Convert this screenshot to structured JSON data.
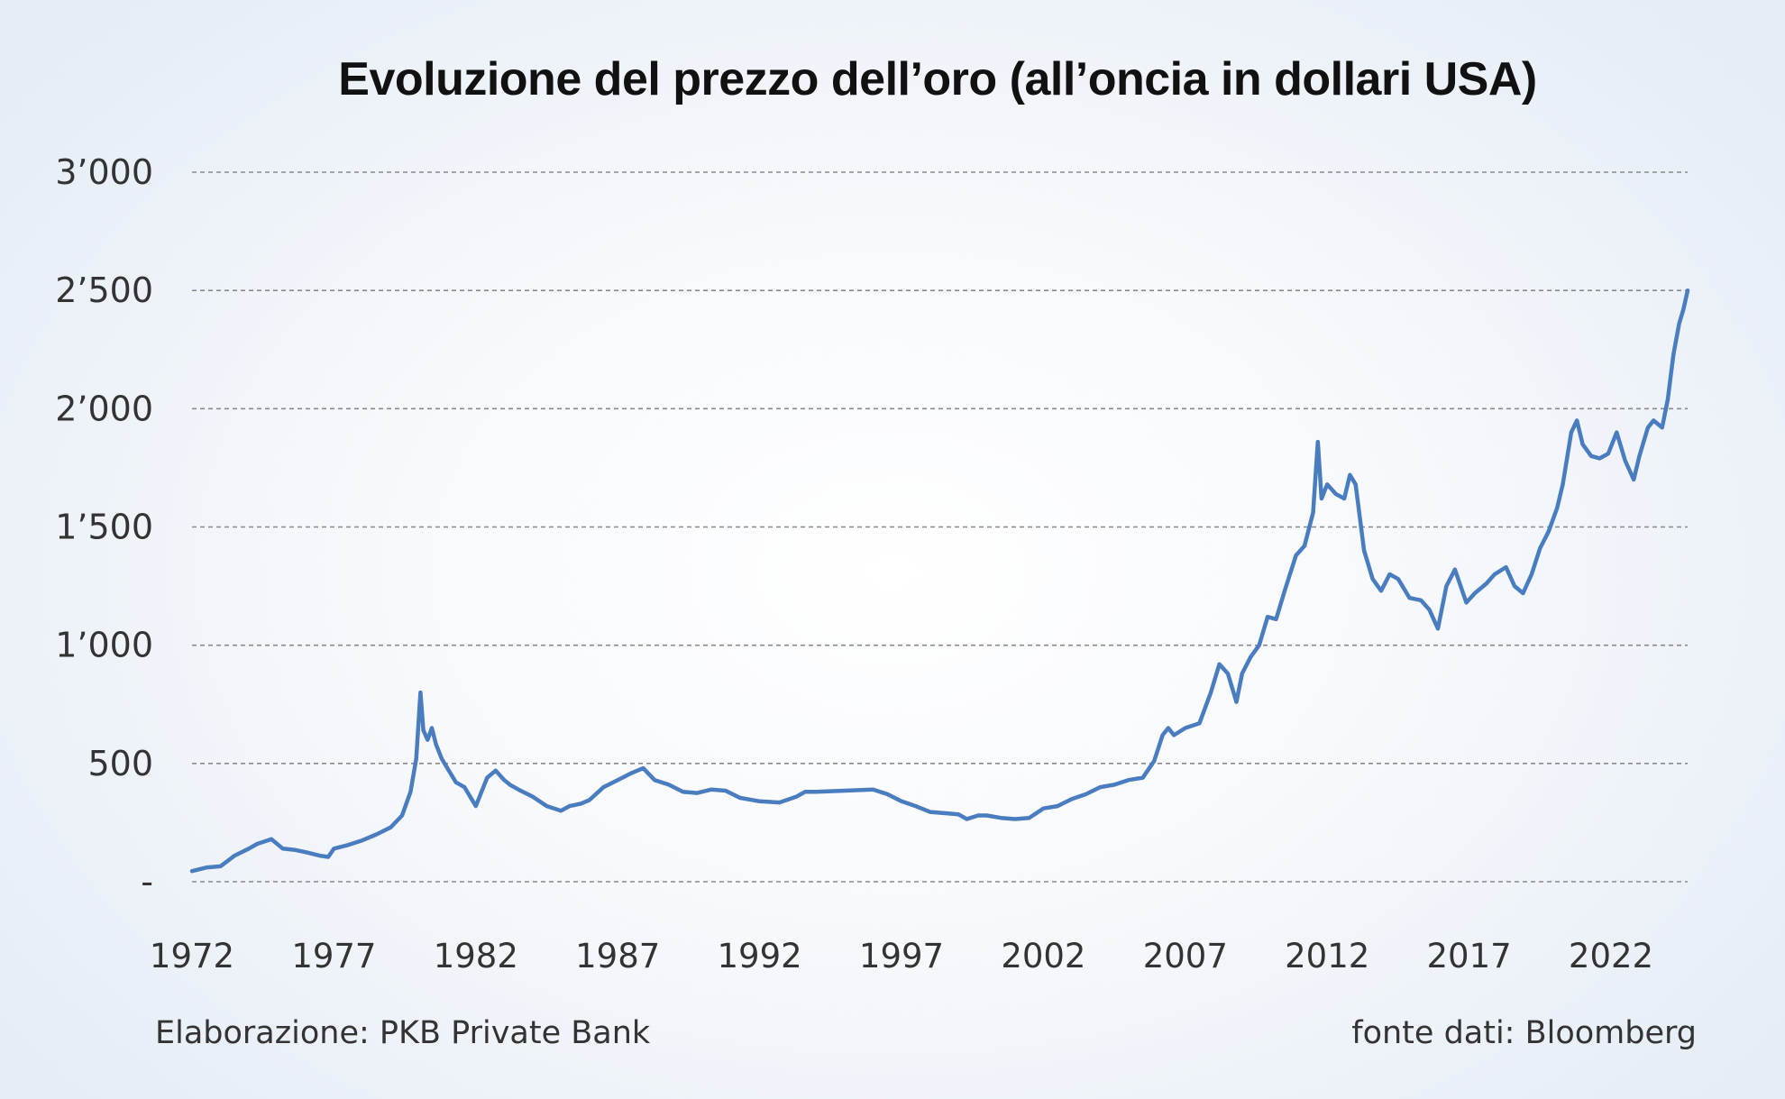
{
  "footer": {
    "left": "Elaborazione: PKB Private Bank",
    "right": "fonte dati: Bloomberg"
  },
  "chart_data": {
    "type": "line",
    "title": "Evoluzione del prezzo dell’oro (all’oncia in dollari USA)",
    "xlabel": "",
    "ylabel": "",
    "xlim": [
      1972,
      2024.7
    ],
    "ylim": [
      0,
      3000
    ],
    "x_ticks": [
      "1972",
      "1977",
      "1982",
      "1987",
      "1992",
      "1997",
      "2002",
      "2007",
      "2012",
      "2017",
      "2022"
    ],
    "x_tick_values": [
      1972,
      1977,
      1982,
      1987,
      1992,
      1997,
      2002,
      2007,
      2012,
      2017,
      2022
    ],
    "y_ticks": [
      "-",
      "500",
      "1’000",
      "1’500",
      "2’000",
      "2’500",
      "3’000"
    ],
    "y_tick_values": [
      0,
      500,
      1000,
      1500,
      2000,
      2500,
      3000
    ],
    "grid": "horizontal dashed",
    "line_color": "#4a7cc0",
    "grid_color": "#8a8a8a",
    "series": [
      {
        "name": "",
        "x": [
          1972.0,
          1972.5,
          1973.0,
          1973.5,
          1974.0,
          1974.3,
          1974.8,
          1975.2,
          1975.6,
          1976.0,
          1976.5,
          1976.8,
          1977.0,
          1977.5,
          1978.0,
          1978.5,
          1979.0,
          1979.4,
          1979.7,
          1979.9,
          1980.05,
          1980.15,
          1980.3,
          1980.45,
          1980.6,
          1980.8,
          1981.0,
          1981.3,
          1981.6,
          1982.0,
          1982.4,
          1982.7,
          1983.0,
          1983.2,
          1983.5,
          1984.0,
          1984.5,
          1985.0,
          1985.3,
          1985.7,
          1986.0,
          1986.5,
          1987.0,
          1987.5,
          1987.9,
          1988.3,
          1988.8,
          1989.3,
          1989.8,
          1990.3,
          1990.8,
          1991.3,
          1992.0,
          1992.7,
          1993.3,
          1993.6,
          1994.0,
          1995.0,
          1996.0,
          1996.5,
          1997.0,
          1997.5,
          1998.0,
          1998.5,
          1999.0,
          1999.3,
          1999.7,
          2000.0,
          2000.5,
          2001.0,
          2001.5,
          2002.0,
          2002.5,
          2003.0,
          2003.5,
          2004.0,
          2004.5,
          2005.0,
          2005.5,
          2005.9,
          2006.2,
          2006.4,
          2006.6,
          2007.0,
          2007.5,
          2007.9,
          2008.2,
          2008.5,
          2008.8,
          2009.0,
          2009.3,
          2009.6,
          2009.9,
          2010.2,
          2010.5,
          2010.9,
          2011.2,
          2011.5,
          2011.67,
          2011.8,
          2012.0,
          2012.3,
          2012.6,
          2012.8,
          2013.0,
          2013.3,
          2013.6,
          2013.9,
          2014.2,
          2014.5,
          2014.9,
          2015.3,
          2015.6,
          2015.9,
          2016.2,
          2016.5,
          2016.9,
          2017.2,
          2017.6,
          2017.9,
          2018.3,
          2018.6,
          2018.9,
          2019.2,
          2019.5,
          2019.8,
          2020.1,
          2020.3,
          2020.6,
          2020.8,
          2021.0,
          2021.3,
          2021.6,
          2021.9,
          2022.2,
          2022.5,
          2022.8,
          2023.0,
          2023.3,
          2023.5,
          2023.8,
          2024.0,
          2024.2,
          2024.4,
          2024.55,
          2024.7
        ],
        "y": [
          45,
          60,
          65,
          110,
          140,
          160,
          180,
          140,
          135,
          125,
          110,
          105,
          140,
          155,
          175,
          200,
          230,
          280,
          380,
          520,
          800,
          640,
          600,
          650,
          580,
          520,
          480,
          420,
          400,
          320,
          440,
          470,
          430,
          410,
          390,
          360,
          320,
          300,
          320,
          330,
          345,
          400,
          430,
          460,
          480,
          430,
          410,
          380,
          375,
          390,
          385,
          355,
          340,
          335,
          360,
          380,
          380,
          385,
          390,
          370,
          340,
          320,
          295,
          290,
          285,
          265,
          280,
          280,
          270,
          265,
          270,
          310,
          320,
          350,
          370,
          400,
          410,
          430,
          440,
          510,
          620,
          650,
          620,
          650,
          670,
          800,
          920,
          880,
          760,
          880,
          950,
          1000,
          1120,
          1110,
          1230,
          1380,
          1420,
          1560,
          1860,
          1620,
          1680,
          1640,
          1620,
          1720,
          1680,
          1400,
          1280,
          1230,
          1300,
          1280,
          1200,
          1190,
          1150,
          1070,
          1250,
          1320,
          1180,
          1220,
          1260,
          1300,
          1330,
          1250,
          1220,
          1300,
          1410,
          1480,
          1580,
          1680,
          1900,
          1950,
          1850,
          1800,
          1790,
          1810,
          1900,
          1780,
          1700,
          1800,
          1920,
          1950,
          1920,
          2040,
          2230,
          2360,
          2420,
          2500
        ]
      }
    ]
  }
}
